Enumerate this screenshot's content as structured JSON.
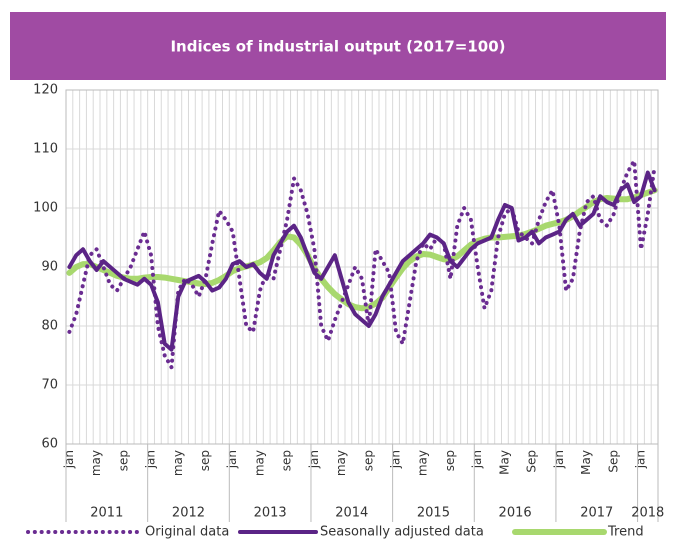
{
  "chart_data": {
    "type": "line",
    "title": "Indices of industrial output (2017=100)",
    "categories": [
      "jan",
      null,
      null,
      null,
      "may",
      null,
      null,
      null,
      "sep",
      null,
      null,
      null,
      "jan",
      null,
      null,
      null,
      "may",
      null,
      null,
      null,
      "sep",
      null,
      null,
      null,
      "jan",
      null,
      null,
      null,
      "may",
      null,
      null,
      null,
      "sep",
      null,
      null,
      null,
      "jan",
      null,
      null,
      null,
      "may",
      null,
      null,
      null,
      "sep",
      null,
      null,
      null,
      "jan",
      null,
      null,
      null,
      "may",
      null,
      null,
      null,
      "sep",
      null,
      null,
      null,
      "jan",
      null,
      null,
      null,
      "May",
      null,
      null,
      null,
      "Sep",
      null,
      null,
      null,
      "jan",
      null,
      null,
      null,
      "May",
      null,
      null,
      null,
      "Sep",
      null,
      null,
      null,
      "jan",
      null,
      null
    ],
    "years": [
      "2011",
      "2012",
      "2013",
      "2014",
      "2015",
      "2016",
      "2017",
      "2018"
    ],
    "series": [
      {
        "name": "Original data",
        "color": "#6a2c91",
        "style": "dotted",
        "values": [
          79,
          82,
          87,
          92,
          93,
          90,
          87,
          86,
          88,
          90,
          93,
          96,
          92,
          80,
          75,
          73,
          86,
          88,
          87,
          85,
          88,
          94,
          99.5,
          98,
          96,
          88,
          80,
          79,
          86,
          89,
          88,
          93,
          98,
          105,
          103,
          99,
          93,
          80,
          77.5,
          81,
          84,
          87,
          90,
          88,
          80,
          93,
          91,
          89,
          79,
          77,
          84,
          91,
          94,
          93,
          95,
          94,
          88,
          97,
          100,
          98,
          90,
          83,
          86,
          95,
          99,
          100,
          96,
          95,
          94,
          98,
          101,
          103,
          97,
          86,
          88,
          96,
          101,
          102,
          98,
          97,
          99,
          103,
          106,
          108,
          93,
          99,
          107
        ]
      },
      {
        "name": "Seasonally adjusted data",
        "color": "#5b2486",
        "style": "solid",
        "values": [
          90,
          92,
          93,
          91,
          89.5,
          91,
          90,
          89,
          88,
          87.5,
          87,
          88,
          87,
          84,
          77,
          76,
          85,
          87.5,
          88,
          88.5,
          87.5,
          86,
          86.5,
          88,
          90.5,
          91,
          90,
          90.5,
          89,
          88,
          92,
          94,
          96,
          97,
          95,
          92,
          89,
          88,
          90,
          92,
          88,
          84,
          82,
          81,
          80,
          82,
          85,
          87,
          89,
          91,
          92,
          93,
          94,
          95.5,
          95,
          94,
          91,
          90,
          91.5,
          93,
          94,
          94.5,
          95,
          98,
          100.5,
          100,
          94.5,
          95,
          96,
          94,
          95,
          95.5,
          96,
          98,
          99,
          97,
          98,
          99,
          102,
          101,
          100.5,
          103,
          104,
          101,
          102,
          106,
          103
        ]
      },
      {
        "name": "Trend",
        "color": "#a8d86e",
        "style": "thick",
        "values": [
          89,
          90,
          90.5,
          90.5,
          90,
          89.5,
          89,
          88.5,
          88.2,
          88,
          88,
          88.2,
          88.3,
          88.3,
          88.2,
          88,
          87.8,
          87.6,
          87.4,
          87.2,
          87.1,
          87.3,
          87.8,
          88.5,
          89.3,
          89.8,
          90.1,
          90.4,
          90.8,
          91.5,
          92.8,
          94.2,
          95.2,
          95,
          93.8,
          92,
          89.8,
          88,
          86.6,
          85.4,
          84.5,
          83.7,
          83.2,
          83,
          83.2,
          83.8,
          84.8,
          86.5,
          88.2,
          89.8,
          91,
          91.8,
          92.2,
          92.1,
          91.7,
          91.3,
          91.2,
          91.8,
          92.8,
          93.8,
          94.4,
          94.8,
          95,
          95,
          95.1,
          95.2,
          95.3,
          95.6,
          96,
          96.5,
          97,
          97.3,
          97.6,
          98,
          98.6,
          99.4,
          100.2,
          101,
          101.5,
          101.7,
          101.6,
          101.5,
          101.5,
          101.8,
          102.2,
          102.6,
          103
        ]
      }
    ],
    "ylim": [
      60,
      120
    ],
    "yticks": [
      60,
      70,
      80,
      90,
      100,
      110,
      120
    ],
    "grid": true
  }
}
